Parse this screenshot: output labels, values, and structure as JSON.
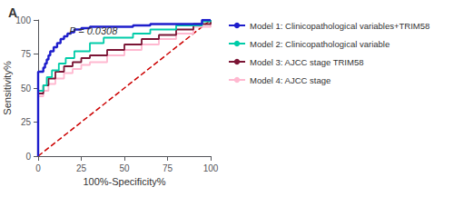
{
  "chart_data": {
    "type": "line",
    "title": "A",
    "annotation": "P = 0.0308",
    "xlabel": "100%-Specificity%",
    "ylabel": "Sensitivity%",
    "xlim": [
      0,
      100
    ],
    "ylim": [
      0,
      100
    ],
    "xticks": [
      0,
      25,
      50,
      75,
      100
    ],
    "yticks": [
      0,
      25,
      50,
      75,
      100
    ],
    "grid": false,
    "legend": "right",
    "line_style": "step",
    "reference_line": {
      "x": [
        0,
        100
      ],
      "values": [
        0,
        100
      ],
      "color": "#CC0000",
      "line_style": "dashed"
    },
    "series": [
      {
        "name": "Model 1: Clinicopathological variables+TRIM58",
        "color": "#1E1ECC",
        "x": [
          0,
          0,
          3,
          4,
          5,
          6,
          7,
          9,
          11,
          13,
          15,
          17,
          19,
          21,
          25,
          30,
          35,
          55,
          65,
          95,
          100
        ],
        "values": [
          0,
          62,
          65,
          68,
          71,
          74,
          77,
          80,
          83,
          86,
          88,
          90,
          91,
          93,
          94,
          95,
          95,
          96,
          97,
          100,
          100
        ]
      },
      {
        "name": "Model 2: Clinicopathological variable",
        "color": "#00CCA8",
        "x": [
          0,
          0,
          3,
          5,
          8,
          12,
          16,
          21,
          30,
          38,
          55,
          65,
          80,
          95,
          100
        ],
        "values": [
          0,
          48,
          52,
          58,
          63,
          68,
          72,
          77,
          83,
          87,
          90,
          93,
          96,
          99,
          100
        ]
      },
      {
        "name": "Model 3: AJCC stage TRIM58",
        "color": "#7B1535",
        "x": [
          0,
          0,
          3,
          6,
          10,
          15,
          20,
          25,
          30,
          40,
          50,
          60,
          70,
          80,
          90,
          100
        ],
        "values": [
          0,
          46,
          52,
          57,
          62,
          66,
          69,
          72,
          74,
          78,
          82,
          86,
          89,
          93,
          97,
          100
        ]
      },
      {
        "name": "Model 4: AJCC stage",
        "color": "#FFB8D0",
        "x": [
          0,
          0,
          3,
          6,
          10,
          15,
          20,
          25,
          30,
          40,
          50,
          60,
          70,
          80,
          90,
          100
        ],
        "values": [
          0,
          44,
          48,
          53,
          57,
          61,
          64,
          67,
          69,
          74,
          78,
          82,
          86,
          90,
          95,
          100
        ]
      }
    ]
  }
}
